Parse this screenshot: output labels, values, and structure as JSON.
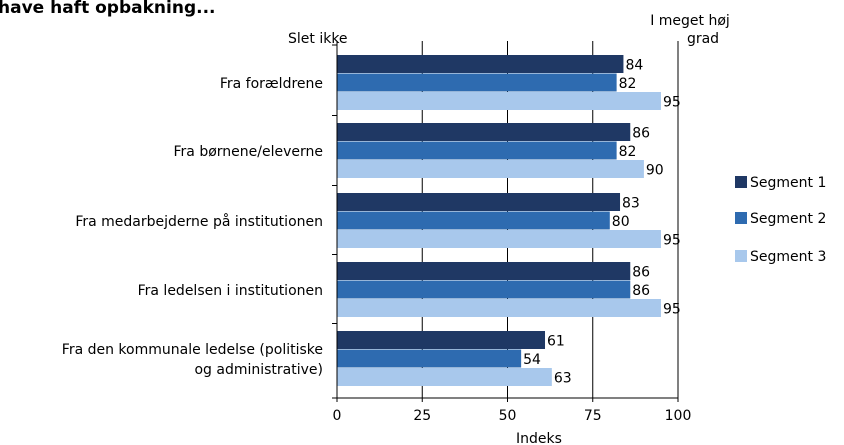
{
  "chart_data": {
    "type": "bar",
    "orientation": "horizontal",
    "title": "have haft opbakning...",
    "categories": [
      [
        "Fra forældrene"
      ],
      [
        "Fra børnene/eleverne"
      ],
      [
        "Fra medarbejderne på institutionen"
      ],
      [
        "Fra ledelsen i institutionen"
      ],
      [
        "Fra den kommunale ledelse (politiske",
        "og administrative)"
      ]
    ],
    "series": [
      {
        "name": "Segment 1",
        "color": "#1f3864",
        "values": [
          84,
          86,
          83,
          86,
          61
        ]
      },
      {
        "name": "Segment 2",
        "color": "#2e6bb0",
        "values": [
          82,
          82,
          80,
          86,
          54
        ]
      },
      {
        "name": "Segment 3",
        "color": "#a8c8ec",
        "values": [
          95,
          90,
          95,
          95,
          63
        ]
      }
    ],
    "xlabel": "Indeks",
    "xlim": [
      0,
      100
    ],
    "xticks": [
      0,
      25,
      50,
      75,
      100
    ],
    "scale_low_label": "Slet ikke",
    "scale_high_label": [
      "I meget høj",
      "grad"
    ],
    "grid": true,
    "legend_position": "right"
  }
}
